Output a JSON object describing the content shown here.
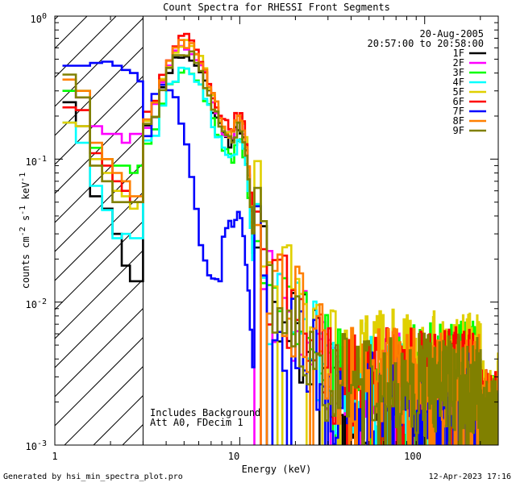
{
  "chart_data": {
    "type": "line",
    "title": "Count Spectra for RHESSI Front Segments",
    "xlabel": "Energy (keV)",
    "ylabel_parts": [
      "counts cm",
      "-2",
      " s",
      "-1",
      " keV",
      "-1"
    ],
    "xscale": "log",
    "yscale": "log",
    "xlim": [
      1,
      250
    ],
    "ylim": [
      0.001,
      1
    ],
    "x_ticks": [
      {
        "value": 1,
        "label": "1"
      },
      {
        "value": 10,
        "label": "10"
      },
      {
        "value": 100,
        "label": "100"
      }
    ],
    "y_ticks": [
      {
        "value": 1,
        "mant": "10",
        "exp": "0"
      },
      {
        "value": 0.1,
        "mant": "10",
        "exp": "-1"
      },
      {
        "value": 0.01,
        "mant": "10",
        "exp": "-2"
      },
      {
        "value": 0.001,
        "mant": "10",
        "exp": "-3"
      }
    ],
    "hatched_region_kev": [
      1,
      3
    ],
    "date": "20-Aug-2005",
    "time_range": "20:57:00 to 20:58:00",
    "annotation_lines": [
      "Includes Background",
      "Att A0, FDecim 1"
    ],
    "footer_left": "Generated by hsi_min_spectra_plot.pro",
    "footer_right": "12-Apr-2023 17:16",
    "series": [
      {
        "name": "1F",
        "color": "#000000",
        "low": [
          0.25,
          0.17,
          0.055,
          0.045,
          0.03,
          0.018,
          0.014,
          0.014
        ],
        "peak": 0.55,
        "plateau": 0.04,
        "tail": 0.0022
      },
      {
        "name": "2F",
        "color": "#ff00ff",
        "low": [
          0.3,
          0.27,
          0.17,
          0.15,
          0.15,
          0.13,
          0.15,
          0.15
        ],
        "peak": 0.6,
        "plateau": 0.06,
        "tail": 0.0028
      },
      {
        "name": "3F",
        "color": "#00ff00",
        "low": [
          0.3,
          0.3,
          0.12,
          0.1,
          0.09,
          0.09,
          0.08,
          0.09
        ],
        "peak": 0.43,
        "plateau": 0.055,
        "tail": 0.0033
      },
      {
        "name": "4F",
        "color": "#00ffff",
        "low": [
          0.18,
          0.13,
          0.065,
          0.044,
          0.028,
          0.03,
          0.028,
          0.028
        ],
        "peak": 0.42,
        "plateau": 0.05,
        "tail": 0.0026
      },
      {
        "name": "5F",
        "color": "#e0d000",
        "low": [
          0.18,
          0.17,
          0.1,
          0.08,
          0.06,
          0.055,
          0.045,
          0.05
        ],
        "peak": 0.65,
        "plateau": 0.05,
        "tail": 0.004
      },
      {
        "name": "6F",
        "color": "#ff0000",
        "low": [
          0.23,
          0.22,
          0.11,
          0.09,
          0.07,
          0.06,
          0.05,
          0.05
        ],
        "peak": 0.7,
        "plateau": 0.055,
        "tail": 0.003
      },
      {
        "name": "7F",
        "color": "#0000ff",
        "low": [
          0.45,
          0.45,
          0.47,
          0.48,
          0.45,
          0.42,
          0.4,
          0.35
        ],
        "peak": 0.33,
        "plateau": 0.03,
        "tail": 0.002
      },
      {
        "name": "8F",
        "color": "#ff7f00",
        "low": [
          0.36,
          0.3,
          0.13,
          0.1,
          0.08,
          0.07,
          0.055,
          0.055
        ],
        "peak": 0.65,
        "plateau": 0.055,
        "tail": 0.003
      },
      {
        "name": "9F",
        "color": "#808000",
        "low": [
          0.39,
          0.27,
          0.09,
          0.07,
          0.05,
          0.05,
          0.05,
          0.05
        ],
        "peak": 0.56,
        "plateau": 0.05,
        "tail": 0.0027
      }
    ]
  }
}
